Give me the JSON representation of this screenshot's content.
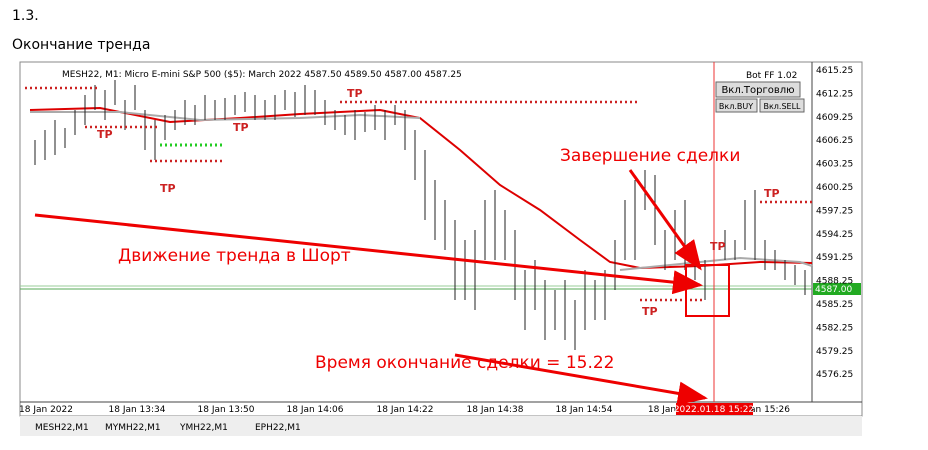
{
  "header": {
    "number": "1.3.",
    "title": "Окончание тренда"
  },
  "terminal": {
    "symbol_info": "MESH22, M1:  Micro E-mini S&P 500 ($5): March 2022  4587.50 4589.50 4587.00 4587.25",
    "bot_name": "Bot FF 1.02",
    "buttons": [
      "Вкл.Торговлю",
      "Вкл.BUY",
      "Вкл.SELL"
    ],
    "price_axis": [
      "4615.25",
      "4612.25",
      "4609.25",
      "4606.25",
      "4603.25",
      "4600.25",
      "4597.25",
      "4594.25",
      "4591.25",
      "4588.25",
      "4585.25",
      "4582.25",
      "4579.25",
      "4576.25"
    ],
    "current_price": "4587.00",
    "time_axis": [
      "18 Jan 2022",
      "18 Jan 13:34",
      "18 Jan 13:50",
      "18 Jan 14:06",
      "18 Jan 14:22",
      "18 Jan 14:38",
      "18 Jan 14:54",
      "18 Jan",
      "an 15:26"
    ],
    "cursor_time": "2022.01.18 15:22",
    "tp_labels": [
      "TP",
      "TP",
      "TP",
      "TP",
      "TP",
      "TP",
      "TP"
    ],
    "tabs": [
      "MESH22,M1",
      "MYMH22,M1",
      "YMH22,M1",
      "EPH22,M1"
    ]
  },
  "annotations": {
    "trade_end": "Завершение сделки",
    "trend": "Движение тренда в Шорт",
    "end_time": "Время окончание сделки = 15.22"
  }
}
